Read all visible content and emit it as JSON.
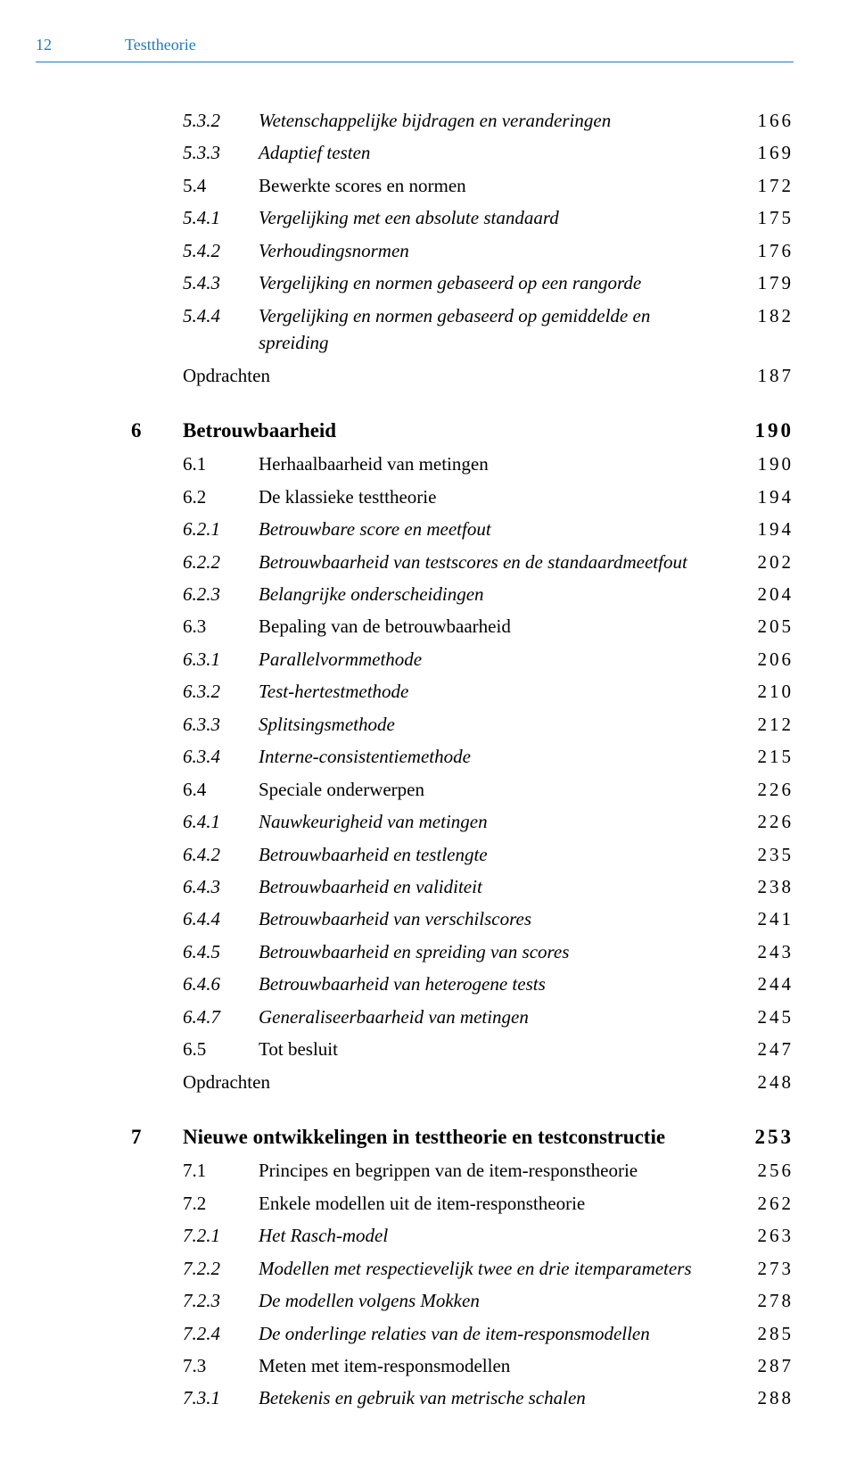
{
  "header": {
    "page": "12",
    "title": "Testtheorie"
  },
  "colors": {
    "accent": "#1e7bb8",
    "text": "#000000",
    "bg": "#ffffff"
  },
  "blocks": [
    {
      "type": "continuation",
      "entries": [
        {
          "n": "5.3.2",
          "t": "Wetenschappelijke bijdragen en veranderingen",
          "p": "166",
          "style": "italic"
        },
        {
          "n": "5.3.3",
          "t": "Adaptief testen",
          "p": "169",
          "style": "italic"
        },
        {
          "n": "5.4",
          "t": "Bewerkte scores en normen",
          "p": "172",
          "style": ""
        },
        {
          "n": "5.4.1",
          "t": "Vergelijking met een absolute standaard",
          "p": "175",
          "style": "italic"
        },
        {
          "n": "5.4.2",
          "t": "Verhoudingsnormen",
          "p": "176",
          "style": "italic"
        },
        {
          "n": "5.4.3",
          "t": "Vergelijking en normen gebaseerd op een rangorde",
          "p": "179",
          "style": "italic"
        },
        {
          "n": "5.4.4",
          "t": "Vergelijking en normen gebaseerd op gemiddelde en spreiding",
          "p": "182",
          "style": "italic"
        },
        {
          "n": "",
          "t": "Opdrachten",
          "p": "187",
          "style": ""
        }
      ]
    },
    {
      "type": "chapter",
      "chapter_num": "6",
      "chapter_title": "Betrouwbaarheid",
      "chapter_page": "190",
      "entries": [
        {
          "n": "6.1",
          "t": "Herhaalbaarheid van metingen",
          "p": "190",
          "style": ""
        },
        {
          "n": "6.2",
          "t": "De klassieke testtheorie",
          "p": "194",
          "style": ""
        },
        {
          "n": "6.2.1",
          "t": "Betrouwbare score en meetfout",
          "p": "194",
          "style": "italic"
        },
        {
          "n": "6.2.2",
          "t": "Betrouwbaarheid van testscores en de standaardmeetfout",
          "p": "202",
          "style": "italic"
        },
        {
          "n": "6.2.3",
          "t": "Belangrijke onderscheidingen",
          "p": "204",
          "style": "italic"
        },
        {
          "n": "6.3",
          "t": "Bepaling van de betrouwbaarheid",
          "p": "205",
          "style": ""
        },
        {
          "n": "6.3.1",
          "t": "Parallelvormmethode",
          "p": "206",
          "style": "italic"
        },
        {
          "n": "6.3.2",
          "t": "Test-hertestmethode",
          "p": "210",
          "style": "italic"
        },
        {
          "n": "6.3.3",
          "t": "Splitsingsmethode",
          "p": "212",
          "style": "italic"
        },
        {
          "n": "6.3.4",
          "t": "Interne-consistentiemethode",
          "p": "215",
          "style": "italic"
        },
        {
          "n": "6.4",
          "t": "Speciale onderwerpen",
          "p": "226",
          "style": ""
        },
        {
          "n": "6.4.1",
          "t": "Nauwkeurigheid van metingen",
          "p": "226",
          "style": "italic"
        },
        {
          "n": "6.4.2",
          "t": "Betrouwbaarheid en testlengte",
          "p": "235",
          "style": "italic"
        },
        {
          "n": "6.4.3",
          "t": "Betrouwbaarheid en validiteit",
          "p": "238",
          "style": "italic"
        },
        {
          "n": "6.4.4",
          "t": "Betrouwbaarheid van verschilscores",
          "p": "241",
          "style": "italic"
        },
        {
          "n": "6.4.5",
          "t": "Betrouwbaarheid en spreiding van scores",
          "p": "243",
          "style": "italic"
        },
        {
          "n": "6.4.6",
          "t": "Betrouwbaarheid van heterogene tests",
          "p": "244",
          "style": "italic"
        },
        {
          "n": "6.4.7",
          "t": "Generaliseerbaarheid van metingen",
          "p": "245",
          "style": "italic"
        },
        {
          "n": "6.5",
          "t": "Tot besluit",
          "p": "247",
          "style": ""
        },
        {
          "n": "",
          "t": "Opdrachten",
          "p": "248",
          "style": ""
        }
      ]
    },
    {
      "type": "chapter",
      "chapter_num": "7",
      "chapter_title": "Nieuwe ontwikkelingen in testtheorie en testconstructie",
      "chapter_page": "253",
      "entries": [
        {
          "n": "7.1",
          "t": "Principes en begrippen van de item-respons­theorie",
          "p": "256",
          "style": ""
        },
        {
          "n": "7.2",
          "t": "Enkele modellen uit de item-responstheorie",
          "p": "262",
          "style": ""
        },
        {
          "n": "7.2.1",
          "t": "Het Rasch-model",
          "p": "263",
          "style": "italic"
        },
        {
          "n": "7.2.2",
          "t": "Modellen met respectievelijk twee en drie itemparameters",
          "p": "273",
          "style": "italic"
        },
        {
          "n": "7.2.3",
          "t": "De modellen volgens Mokken",
          "p": "278",
          "style": "italic"
        },
        {
          "n": "7.2.4",
          "t": "De onderlinge relaties van de item-responsmodellen",
          "p": "285",
          "style": "italic"
        },
        {
          "n": "7.3",
          "t": "Meten met item-responsmodellen",
          "p": "287",
          "style": ""
        },
        {
          "n": "7.3.1",
          "t": "Betekenis en gebruik van metrische schalen",
          "p": "288",
          "style": "italic"
        }
      ]
    }
  ]
}
